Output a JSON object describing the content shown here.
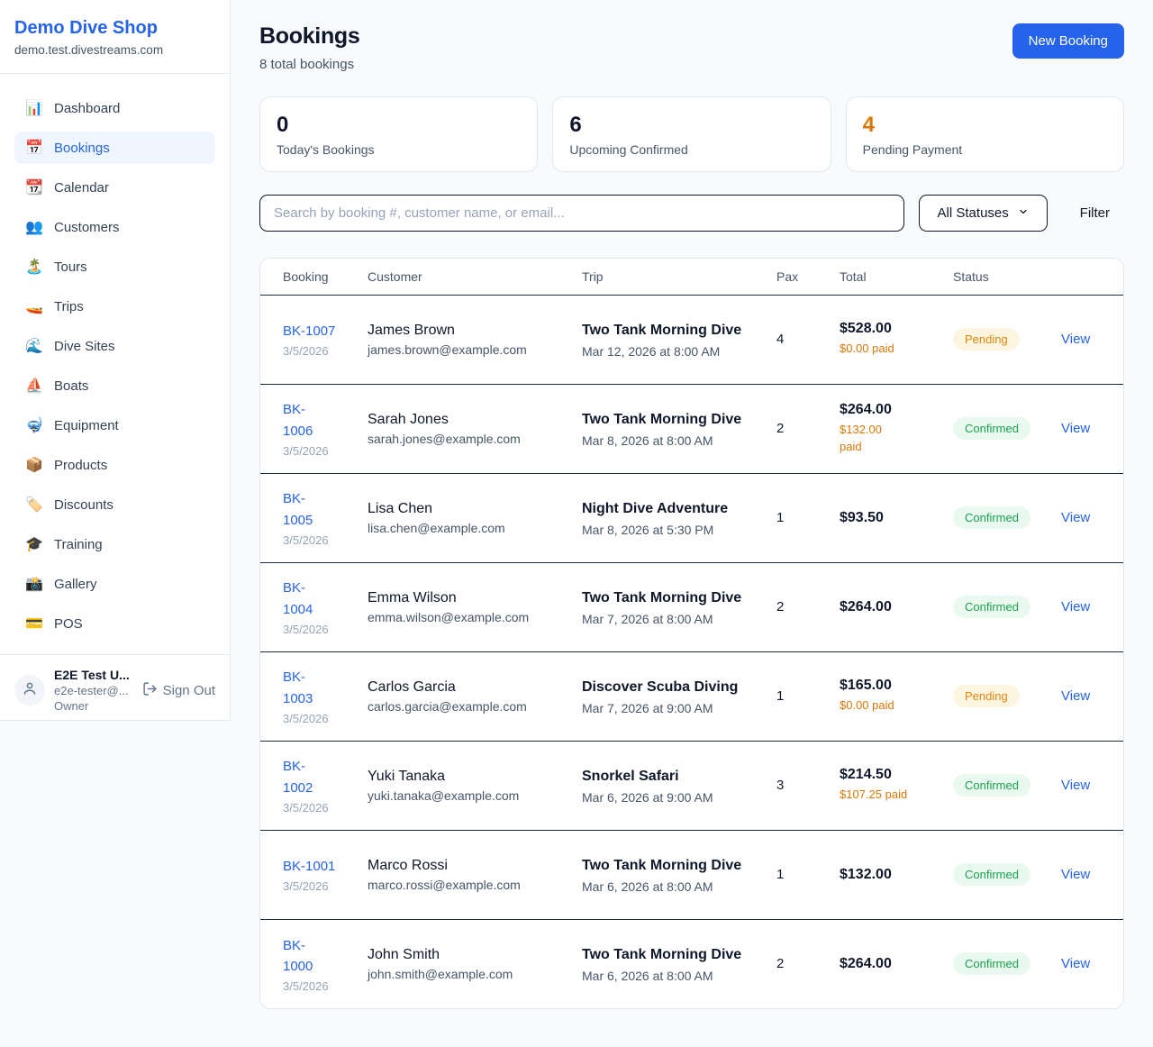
{
  "colors": {
    "accent_blue": "#2563eb",
    "pending_orange": "#d97706",
    "confirmed_green": "#1ca14e",
    "page_background": "#f8fafc"
  },
  "sidebar": {
    "shop_name": "Demo Dive Shop",
    "shop_domain": "demo.test.divestreams.com",
    "items": [
      {
        "icon": "📊",
        "label": "Dashboard",
        "active": false
      },
      {
        "icon": "📅",
        "label": "Bookings",
        "active": true
      },
      {
        "icon": "📆",
        "label": "Calendar",
        "active": false
      },
      {
        "icon": "👥",
        "label": "Customers",
        "active": false
      },
      {
        "icon": "🏝️",
        "label": "Tours",
        "active": false
      },
      {
        "icon": "🚤",
        "label": "Trips",
        "active": false
      },
      {
        "icon": "🌊",
        "label": "Dive Sites",
        "active": false
      },
      {
        "icon": "⛵",
        "label": "Boats",
        "active": false
      },
      {
        "icon": "🤿",
        "label": "Equipment",
        "active": false
      },
      {
        "icon": "📦",
        "label": "Products",
        "active": false
      },
      {
        "icon": "🏷️",
        "label": "Discounts",
        "active": false
      },
      {
        "icon": "🎓",
        "label": "Training",
        "active": false
      },
      {
        "icon": "📸",
        "label": "Gallery",
        "active": false
      },
      {
        "icon": "💳",
        "label": "POS",
        "active": false
      }
    ],
    "user": {
      "name": "E2E Test U...",
      "email": "e2e-tester@...",
      "role": "Owner",
      "sign_out_label": "Sign Out"
    }
  },
  "header": {
    "title": "Bookings",
    "subtitle": "8 total bookings",
    "new_booking_label": "New Booking"
  },
  "stats": [
    {
      "value": "0",
      "label": "Today's Bookings",
      "accent": false
    },
    {
      "value": "6",
      "label": "Upcoming Confirmed",
      "accent": false
    },
    {
      "value": "4",
      "label": "Pending Payment",
      "accent": true
    }
  ],
  "filters": {
    "search_placeholder": "Search by booking #, customer name, or email...",
    "status_select_value": "All Statuses",
    "filter_label": "Filter"
  },
  "table": {
    "columns": [
      "Booking",
      "Customer",
      "Trip",
      "Pax",
      "Total",
      "Status",
      ""
    ],
    "rows": [
      {
        "booking_id": "BK-1007",
        "booking_date": "3/5/2026",
        "customer_name": "James Brown",
        "customer_email": "james.brown@example.com",
        "trip_name": "Two Tank Morning Dive",
        "trip_datetime": "Mar 12, 2026 at 8:00 AM",
        "pax": "4",
        "total": "$528.00",
        "paid": "$0.00 paid",
        "status": "Pending",
        "action": "View"
      },
      {
        "booking_id": "BK-\n1006",
        "booking_date": "3/5/2026",
        "customer_name": "Sarah Jones",
        "customer_email": "sarah.jones@example.com",
        "trip_name": "Two Tank Morning Dive",
        "trip_datetime": "Mar 8, 2026 at 8:00 AM",
        "pax": "2",
        "total": "$264.00",
        "paid": "$132.00\npaid",
        "status": "Confirmed",
        "action": "View"
      },
      {
        "booking_id": "BK-\n1005",
        "booking_date": "3/5/2026",
        "customer_name": "Lisa Chen",
        "customer_email": "lisa.chen@example.com",
        "trip_name": "Night Dive Adventure",
        "trip_datetime": "Mar 8, 2026 at 5:30 PM",
        "pax": "1",
        "total": "$93.50",
        "paid": "",
        "status": "Confirmed",
        "action": "View"
      },
      {
        "booking_id": "BK-\n1004",
        "booking_date": "3/5/2026",
        "customer_name": "Emma Wilson",
        "customer_email": "emma.wilson@example.com",
        "trip_name": "Two Tank Morning Dive",
        "trip_datetime": "Mar 7, 2026 at 8:00 AM",
        "pax": "2",
        "total": "$264.00",
        "paid": "",
        "status": "Confirmed",
        "action": "View"
      },
      {
        "booking_id": "BK-\n1003",
        "booking_date": "3/5/2026",
        "customer_name": "Carlos Garcia",
        "customer_email": "carlos.garcia@example.com",
        "trip_name": "Discover Scuba Diving",
        "trip_datetime": "Mar 7, 2026 at 9:00 AM",
        "pax": "1",
        "total": "$165.00",
        "paid": "$0.00 paid",
        "status": "Pending",
        "action": "View"
      },
      {
        "booking_id": "BK-\n1002",
        "booking_date": "3/5/2026",
        "customer_name": "Yuki Tanaka",
        "customer_email": "yuki.tanaka@example.com",
        "trip_name": "Snorkel Safari",
        "trip_datetime": "Mar 6, 2026 at 9:00 AM",
        "pax": "3",
        "total": "$214.50",
        "paid": "$107.25 paid",
        "status": "Confirmed",
        "action": "View"
      },
      {
        "booking_id": "BK-1001",
        "booking_date": "3/5/2026",
        "customer_name": "Marco Rossi",
        "customer_email": "marco.rossi@example.com",
        "trip_name": "Two Tank Morning Dive",
        "trip_datetime": "Mar 6, 2026 at 8:00 AM",
        "pax": "1",
        "total": "$132.00",
        "paid": "",
        "status": "Confirmed",
        "action": "View"
      },
      {
        "booking_id": "BK-\n1000",
        "booking_date": "3/5/2026",
        "customer_name": "John Smith",
        "customer_email": "john.smith@example.com",
        "trip_name": "Two Tank Morning Dive",
        "trip_datetime": "Mar 6, 2026 at 8:00 AM",
        "pax": "2",
        "total": "$264.00",
        "paid": "",
        "status": "Confirmed",
        "action": "View"
      }
    ]
  }
}
